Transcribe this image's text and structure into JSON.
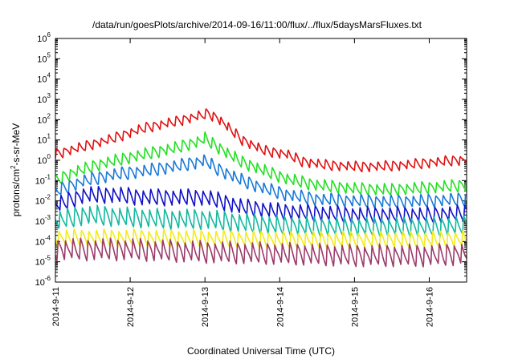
{
  "chart_data": {
    "type": "line",
    "title": "/data/run/goesPlots/archive/2014-09-16/11:00/flux/../flux/5daysMarsFluxes.txt",
    "xlabel": "Coordinated Universal Time (UTC)",
    "ylabel": "protons/cm²-s-sr-MeV",
    "ylabel_parts": {
      "before": "protons/cm",
      "sup": "2",
      "after": "-s-sr-MeV"
    },
    "log_y": true,
    "ylim": [
      1e-06,
      1000000.0
    ],
    "xlim_days": [
      0,
      5.5
    ],
    "x_ticks": [
      {
        "day": 0,
        "label": "2014-9-11"
      },
      {
        "day": 1,
        "label": "2014-9-12"
      },
      {
        "day": 2,
        "label": "2014-9-13"
      },
      {
        "day": 3,
        "label": "2014-9-14"
      },
      {
        "day": 4,
        "label": "2014-9-15"
      },
      {
        "day": 5,
        "label": "2014-9-16"
      }
    ],
    "y_ticks": [
      {
        "exp": "-6",
        "label": "10-6"
      },
      {
        "exp": "-5",
        "label": "10-5"
      },
      {
        "exp": "-4",
        "label": "10-4"
      },
      {
        "exp": "-3",
        "label": "10-3"
      },
      {
        "exp": "-2",
        "label": "10-2"
      },
      {
        "exp": "-1",
        "label": "10-1"
      },
      {
        "exp": "0",
        "label": "100"
      },
      {
        "exp": "1",
        "label": "101"
      },
      {
        "exp": "2",
        "label": "102"
      },
      {
        "exp": "3",
        "label": "103"
      },
      {
        "exp": "4",
        "label": "104"
      },
      {
        "exp": "5",
        "label": "105"
      },
      {
        "exp": "6",
        "label": "106"
      }
    ],
    "grid": false,
    "legend": "none",
    "series": [
      {
        "color": "#e01010",
        "amp": 0.45,
        "noise": 0.05,
        "width": 1.6,
        "anchors": [
          [
            0.0,
            2
          ],
          [
            0.3,
            4
          ],
          [
            0.7,
            10
          ],
          [
            1.2,
            40
          ],
          [
            1.6,
            80
          ],
          [
            1.9,
            150
          ],
          [
            2.05,
            200
          ],
          [
            2.2,
            100
          ],
          [
            2.5,
            10
          ],
          [
            2.8,
            3
          ],
          [
            3.1,
            2
          ],
          [
            3.3,
            0.9
          ],
          [
            3.6,
            0.6
          ],
          [
            4.0,
            0.5
          ],
          [
            4.3,
            0.5
          ],
          [
            4.7,
            0.6
          ],
          [
            5.2,
            0.9
          ],
          [
            5.5,
            1.1
          ]
        ]
      },
      {
        "color": "#22e022",
        "amp": 0.55,
        "noise": 0.05,
        "width": 1.6,
        "anchors": [
          [
            0.0,
            0.1
          ],
          [
            0.3,
            0.3
          ],
          [
            0.7,
            0.8
          ],
          [
            1.2,
            2
          ],
          [
            1.6,
            4
          ],
          [
            1.9,
            8
          ],
          [
            2.0,
            12
          ],
          [
            2.15,
            5
          ],
          [
            2.5,
            0.8
          ],
          [
            2.8,
            0.3
          ],
          [
            3.1,
            0.12
          ],
          [
            3.5,
            0.06
          ],
          [
            4.0,
            0.04
          ],
          [
            4.5,
            0.035
          ],
          [
            5.0,
            0.045
          ],
          [
            5.5,
            0.06
          ]
        ]
      },
      {
        "color": "#1a7ad8",
        "amp": 0.6,
        "noise": 0.06,
        "width": 1.6,
        "anchors": [
          [
            0.0,
            0.03
          ],
          [
            0.4,
            0.1
          ],
          [
            0.8,
            0.2
          ],
          [
            1.2,
            0.3
          ],
          [
            1.6,
            0.5
          ],
          [
            1.9,
            0.8
          ],
          [
            2.0,
            1.0
          ],
          [
            2.15,
            0.4
          ],
          [
            2.5,
            0.1
          ],
          [
            2.8,
            0.04
          ],
          [
            3.1,
            0.02
          ],
          [
            3.5,
            0.012
          ],
          [
            4.0,
            0.01
          ],
          [
            4.5,
            0.009
          ],
          [
            5.0,
            0.01
          ],
          [
            5.5,
            0.012
          ]
        ]
      },
      {
        "color": "#1010c8",
        "amp": 0.75,
        "noise": 0.06,
        "width": 1.6,
        "anchors": [
          [
            0.0,
            0.006
          ],
          [
            0.4,
            0.02
          ],
          [
            0.8,
            0.02
          ],
          [
            1.2,
            0.015
          ],
          [
            1.6,
            0.015
          ],
          [
            2.0,
            0.015
          ],
          [
            2.2,
            0.01
          ],
          [
            2.5,
            0.005
          ],
          [
            3.0,
            0.003
          ],
          [
            3.5,
            0.0025
          ],
          [
            4.0,
            0.002
          ],
          [
            4.5,
            0.002
          ],
          [
            5.0,
            0.002
          ],
          [
            5.5,
            0.0025
          ]
        ]
      },
      {
        "color": "#12b8a0",
        "amp": 0.9,
        "noise": 0.07,
        "width": 1.6,
        "anchors": [
          [
            0.0,
            0.001
          ],
          [
            0.4,
            0.002
          ],
          [
            1.0,
            0.0015
          ],
          [
            1.6,
            0.0012
          ],
          [
            2.0,
            0.0012
          ],
          [
            2.5,
            0.0008
          ],
          [
            3.0,
            0.0006
          ],
          [
            3.5,
            0.0005
          ],
          [
            4.0,
            0.0005
          ],
          [
            4.5,
            0.0005
          ],
          [
            5.0,
            0.0005
          ],
          [
            5.5,
            0.0006
          ]
        ]
      },
      {
        "color": "#f2ec1a",
        "amp": 0.8,
        "noise": 0.06,
        "width": 1.6,
        "anchors": [
          [
            0.0,
            0.00015
          ],
          [
            1.0,
            0.00015
          ],
          [
            2.0,
            0.00014
          ],
          [
            3.0,
            0.00012
          ],
          [
            4.0,
            0.00012
          ],
          [
            5.0,
            0.00012
          ],
          [
            5.5,
            0.00013
          ]
        ]
      },
      {
        "color": "#9a3a6a",
        "amp": 1.0,
        "noise": 0.08,
        "width": 1.6,
        "anchors": [
          [
            0.0,
            4e-05
          ],
          [
            1.0,
            4e-05
          ],
          [
            2.0,
            3e-05
          ],
          [
            3.0,
            2.5e-05
          ],
          [
            4.0,
            2e-05
          ],
          [
            5.0,
            2e-05
          ],
          [
            5.5,
            2.5e-05
          ]
        ]
      }
    ]
  }
}
